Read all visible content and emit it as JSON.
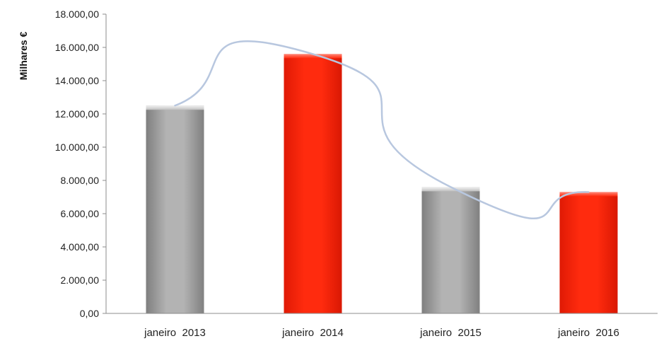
{
  "chart_data": {
    "type": "bar",
    "title": "",
    "xlabel": "",
    "ylabel": "Milhares €",
    "ylim": [
      0,
      18000
    ],
    "yticks": [
      0,
      2000,
      4000,
      6000,
      8000,
      10000,
      12000,
      14000,
      16000,
      18000
    ],
    "ytick_labels": [
      "0,00",
      "2.000,00",
      "4.000,00",
      "6.000,00",
      "8.000,00",
      "10.000,00",
      "12.000,00",
      "14.000,00",
      "16.000,00",
      "18.000,00"
    ],
    "categories": [
      "janeiro  2013",
      "janeiro  2014",
      "janeiro  2015",
      "janeiro  2016"
    ],
    "values": [
      12500,
      15600,
      7600,
      7300
    ],
    "bar_colors": [
      "#a6a6a6",
      "#ff2a0d",
      "#a6a6a6",
      "#ff2a0d"
    ],
    "trendline": {
      "type": "smoothed",
      "color": "#b8c7df"
    },
    "grid": false,
    "legend": "none"
  }
}
